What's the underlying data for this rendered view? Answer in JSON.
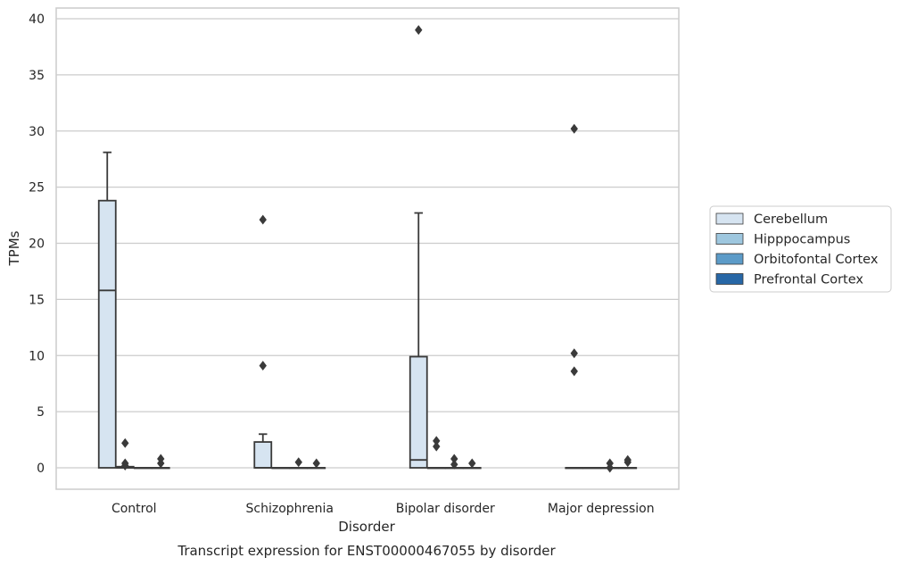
{
  "chart_data": {
    "type": "box",
    "title": "",
    "caption": "Transcript expression for ENST00000467055 by disorder",
    "xlabel": "Disorder",
    "ylabel": "TPMs",
    "ylim": [
      -1.9,
      40.9
    ],
    "yticks": [
      0,
      5,
      10,
      15,
      20,
      25,
      30,
      35,
      40
    ],
    "grid": "horizontal",
    "legend_position": "right",
    "categories": [
      "Control",
      "Schizophrenia",
      "Bipolar disorder",
      "Major depression"
    ],
    "series": [
      {
        "name": "Cerebellum",
        "color": "#d6e4f1",
        "boxes": [
          {
            "whislo": 0,
            "q1": 0,
            "med": 15.8,
            "q3": 23.8,
            "whishi": 28.1,
            "fliers": []
          },
          {
            "whislo": 0,
            "q1": 0,
            "med": 0,
            "q3": 2.3,
            "whishi": 3.0,
            "fliers": [
              9.1,
              22.1
            ]
          },
          {
            "whislo": 0,
            "q1": 0,
            "med": 0.7,
            "q3": 9.9,
            "whishi": 22.7,
            "fliers": [
              39.0
            ]
          },
          {
            "whislo": 0,
            "q1": 0,
            "med": 0,
            "q3": 0,
            "whishi": 0,
            "fliers": [
              8.6,
              10.2,
              30.2
            ]
          }
        ]
      },
      {
        "name": "Hipppocampus",
        "color": "#9ec7df",
        "boxes": [
          {
            "whislo": 0,
            "q1": 0,
            "med": 0,
            "q3": 0.1,
            "whishi": 0.1,
            "fliers": [
              0.2,
              0.4,
              2.2
            ]
          },
          {
            "whislo": 0,
            "q1": 0,
            "med": 0,
            "q3": 0,
            "whishi": 0,
            "fliers": []
          },
          {
            "whislo": 0,
            "q1": 0,
            "med": 0,
            "q3": 0,
            "whishi": 0,
            "fliers": [
              1.9,
              2.4
            ]
          },
          {
            "whislo": 0,
            "q1": 0,
            "med": 0,
            "q3": 0,
            "whishi": 0,
            "fliers": []
          }
        ]
      },
      {
        "name": "Orbitofontal Cortex",
        "color": "#5c9bc8",
        "boxes": [
          {
            "whislo": 0,
            "q1": 0,
            "med": 0,
            "q3": 0,
            "whishi": 0,
            "fliers": []
          },
          {
            "whislo": 0,
            "q1": 0,
            "med": 0,
            "q3": 0,
            "whishi": 0,
            "fliers": [
              0.5
            ]
          },
          {
            "whislo": 0,
            "q1": 0,
            "med": 0,
            "q3": 0,
            "whishi": 0,
            "fliers": [
              0.3,
              0.8
            ]
          },
          {
            "whislo": 0,
            "q1": 0,
            "med": 0,
            "q3": 0,
            "whishi": 0,
            "fliers": [
              0.0,
              0.4
            ]
          }
        ]
      },
      {
        "name": "Prefrontal Cortex",
        "color": "#2767a6",
        "boxes": [
          {
            "whislo": 0,
            "q1": 0,
            "med": 0,
            "q3": 0,
            "whishi": 0,
            "fliers": [
              0.4,
              0.8
            ]
          },
          {
            "whislo": 0,
            "q1": 0,
            "med": 0,
            "q3": 0,
            "whishi": 0,
            "fliers": [
              0.4
            ]
          },
          {
            "whislo": 0,
            "q1": 0,
            "med": 0,
            "q3": 0,
            "whishi": 0,
            "fliers": [
              0.4
            ]
          },
          {
            "whislo": 0,
            "q1": 0,
            "med": 0,
            "q3": 0,
            "whishi": 0,
            "fliers": [
              0.5,
              0.7
            ]
          }
        ]
      }
    ]
  }
}
